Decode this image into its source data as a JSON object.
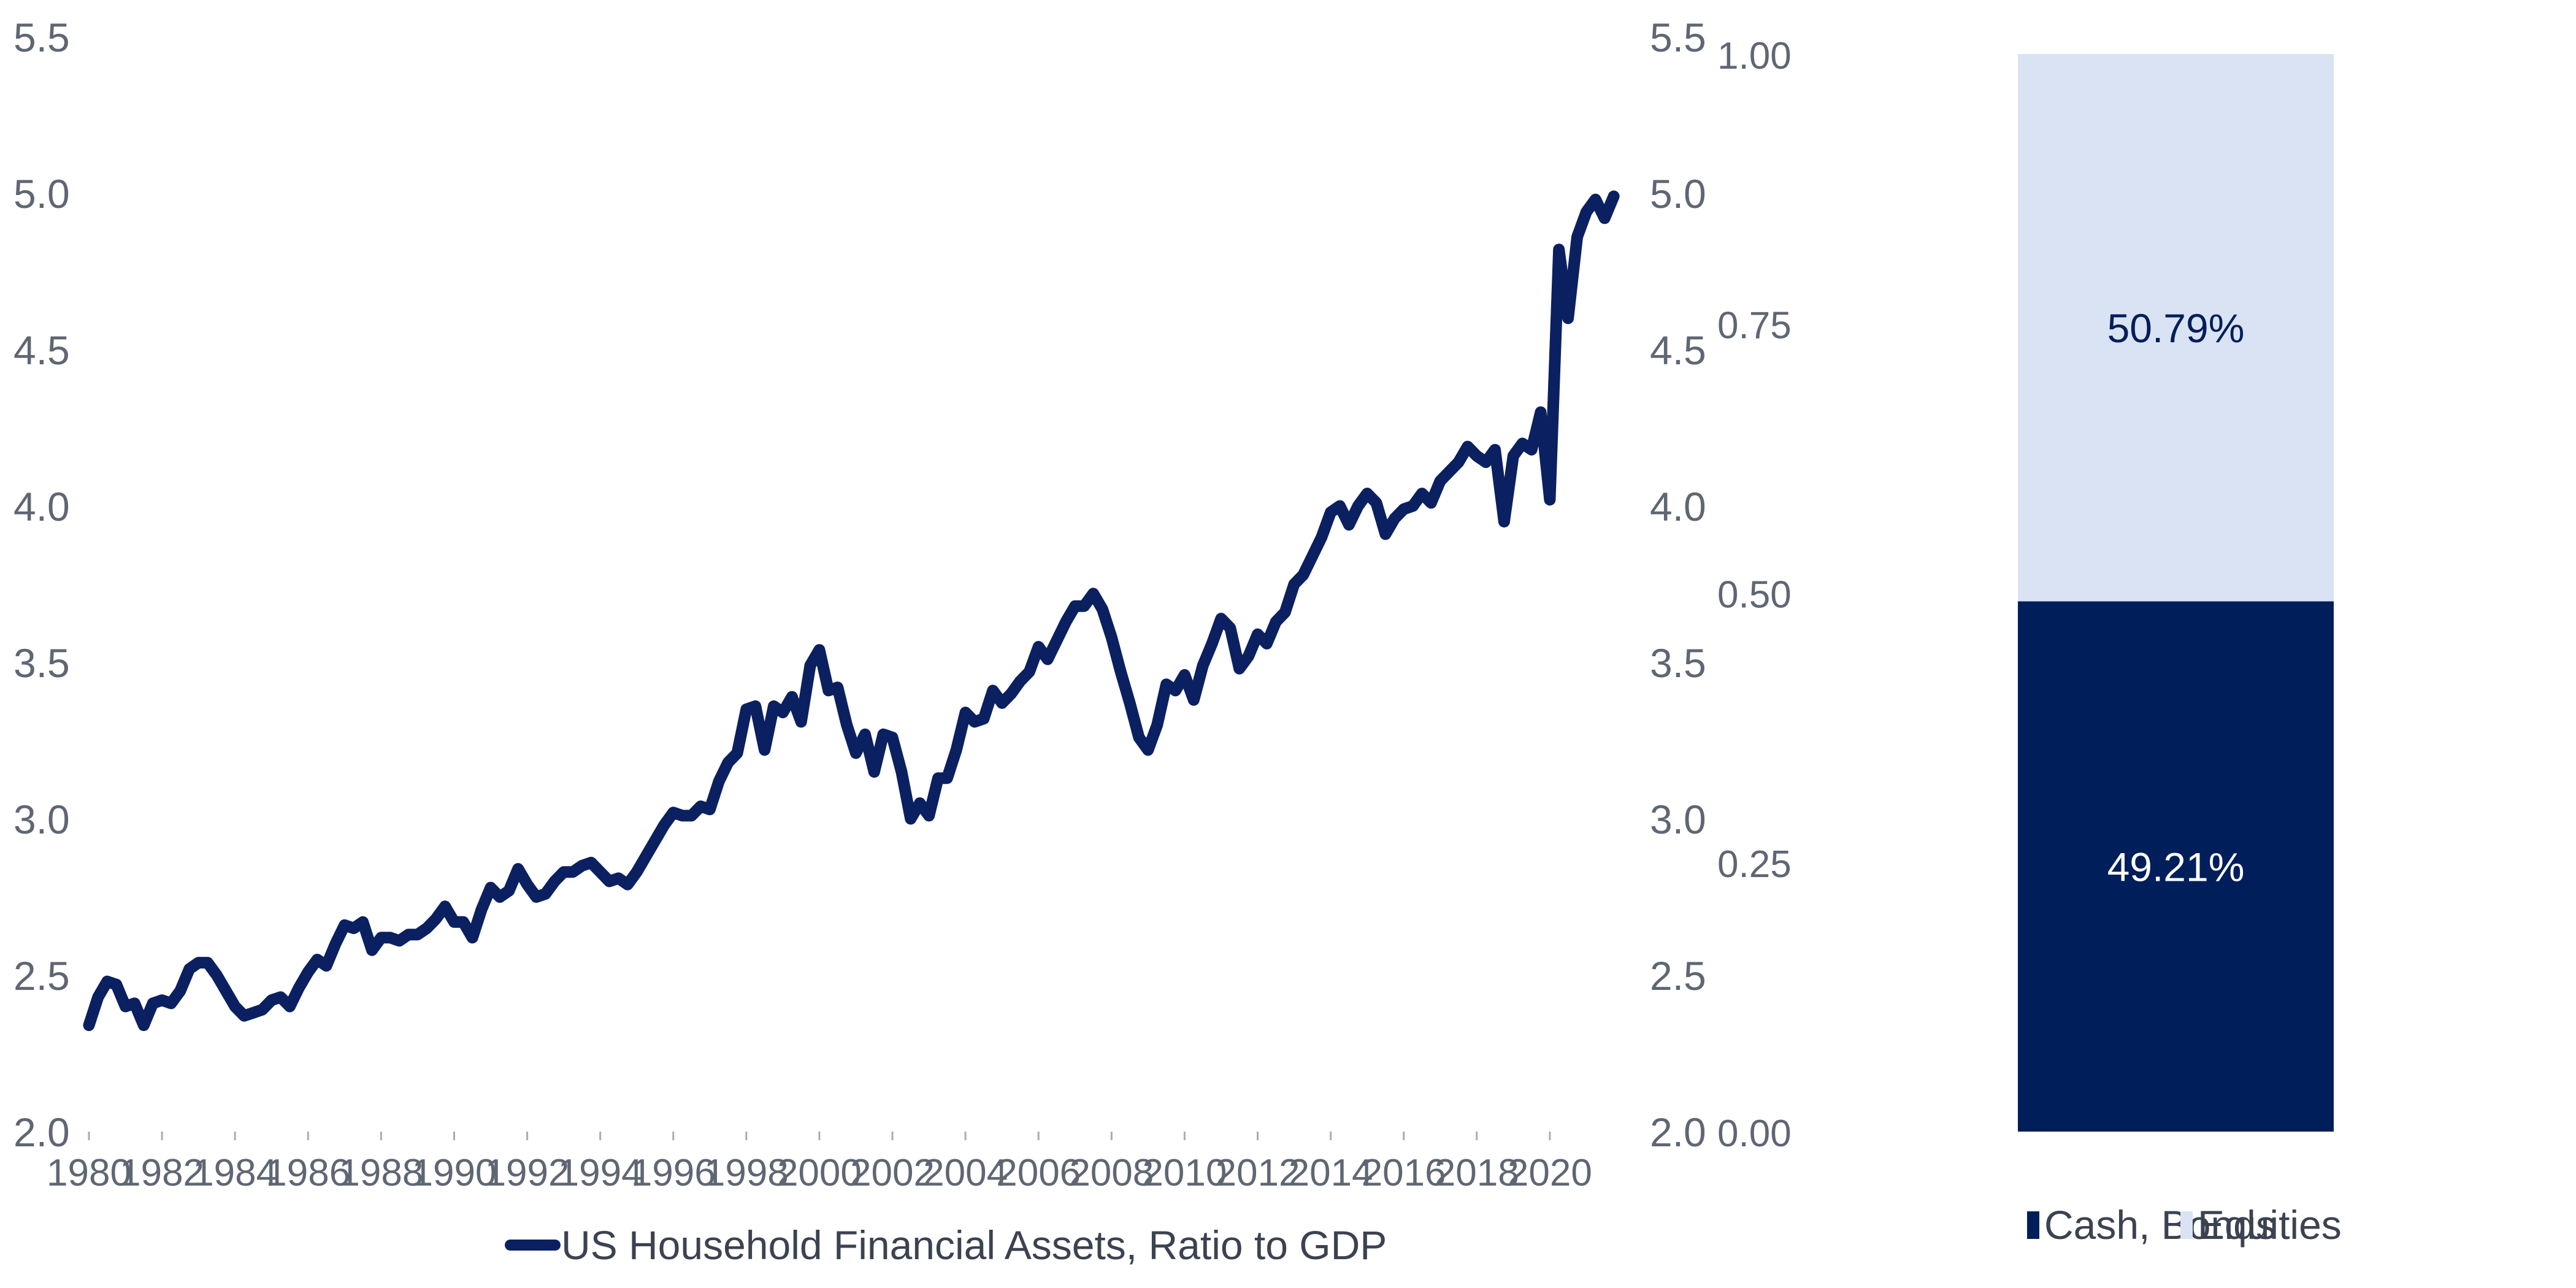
{
  "colors": {
    "line": "#0b2060",
    "cash_bonds": "#001e5a",
    "equities": "#dae3f3",
    "tick_text": "#5f6673"
  },
  "chart_data": [
    {
      "type": "line",
      "title": "",
      "xlabel": "",
      "ylabel": "",
      "x_ticks": [
        "1980",
        "1982",
        "1984",
        "1986",
        "1988",
        "1990",
        "1992",
        "1994",
        "1996",
        "1998",
        "2000",
        "2002",
        "2004",
        "2006",
        "2008",
        "2010",
        "2012",
        "2014",
        "2016",
        "2018",
        "2020"
      ],
      "y_ticks": [
        "2.0",
        "2.5",
        "3.0",
        "3.5",
        "4.0",
        "4.5",
        "5.0",
        "5.5"
      ],
      "y_ticks_right": [
        "2.0",
        "2.5",
        "3.0",
        "3.5",
        "4.0",
        "4.5",
        "5.0",
        "5.5"
      ],
      "xlim": [
        1980,
        2021.9
      ],
      "ylim": [
        2.0,
        5.5
      ],
      "grid": false,
      "legend_position": "bottom-center",
      "series": [
        {
          "name": "US Household Financial Assets, Ratio to GDP",
          "x": [
            1980.0,
            1980.25,
            1980.5,
            1980.75,
            1981.0,
            1981.25,
            1981.5,
            1981.75,
            1982.0,
            1982.25,
            1982.5,
            1982.75,
            1983.0,
            1983.25,
            1983.5,
            1983.75,
            1984.0,
            1984.25,
            1984.5,
            1984.75,
            1985.0,
            1985.25,
            1985.5,
            1985.75,
            1986.0,
            1986.25,
            1986.5,
            1986.75,
            1987.0,
            1987.25,
            1987.5,
            1987.75,
            1988.0,
            1988.25,
            1988.5,
            1988.75,
            1989.0,
            1989.25,
            1989.5,
            1989.75,
            1990.0,
            1990.25,
            1990.5,
            1990.75,
            1991.0,
            1991.25,
            1991.5,
            1991.75,
            1992.0,
            1992.25,
            1992.5,
            1992.75,
            1993.0,
            1993.25,
            1993.5,
            1993.75,
            1994.0,
            1994.25,
            1994.5,
            1994.75,
            1995.0,
            1995.25,
            1995.5,
            1995.75,
            1996.0,
            1996.25,
            1996.5,
            1996.75,
            1997.0,
            1997.25,
            1997.5,
            1997.75,
            1998.0,
            1998.25,
            1998.5,
            1998.75,
            1999.0,
            1999.25,
            1999.5,
            1999.75,
            2000.0,
            2000.25,
            2000.5,
            2000.75,
            2001.0,
            2001.25,
            2001.5,
            2001.75,
            2002.0,
            2002.25,
            2002.5,
            2002.75,
            2003.0,
            2003.25,
            2003.5,
            2003.75,
            2004.0,
            2004.25,
            2004.5,
            2004.75,
            2005.0,
            2005.25,
            2005.5,
            2005.75,
            2006.0,
            2006.25,
            2006.5,
            2006.75,
            2007.0,
            2007.25,
            2007.5,
            2007.75,
            2008.0,
            2008.25,
            2008.5,
            2008.75,
            2009.0,
            2009.25,
            2009.5,
            2009.75,
            2010.0,
            2010.25,
            2010.5,
            2010.75,
            2011.0,
            2011.25,
            2011.5,
            2011.75,
            2012.0,
            2012.25,
            2012.5,
            2012.75,
            2013.0,
            2013.25,
            2013.5,
            2013.75,
            2014.0,
            2014.25,
            2014.5,
            2014.75,
            2015.0,
            2015.25,
            2015.5,
            2015.75,
            2016.0,
            2016.25,
            2016.5,
            2016.75,
            2017.0,
            2017.25,
            2017.5,
            2017.75,
            2018.0,
            2018.25,
            2018.5,
            2018.75,
            2019.0,
            2019.25,
            2019.5,
            2019.75,
            2020.0,
            2020.25,
            2020.5,
            2020.75,
            2021.0,
            2021.25,
            2021.5,
            2021.75
          ],
          "values": [
            2.34,
            2.43,
            2.48,
            2.47,
            2.4,
            2.41,
            2.34,
            2.41,
            2.42,
            2.41,
            2.45,
            2.52,
            2.54,
            2.54,
            2.5,
            2.45,
            2.4,
            2.37,
            2.38,
            2.39,
            2.42,
            2.43,
            2.4,
            2.46,
            2.51,
            2.55,
            2.53,
            2.6,
            2.66,
            2.65,
            2.67,
            2.58,
            2.62,
            2.62,
            2.61,
            2.63,
            2.63,
            2.65,
            2.68,
            2.72,
            2.67,
            2.67,
            2.62,
            2.71,
            2.78,
            2.75,
            2.77,
            2.84,
            2.79,
            2.75,
            2.76,
            2.8,
            2.83,
            2.83,
            2.85,
            2.86,
            2.83,
            2.8,
            2.81,
            2.79,
            2.83,
            2.88,
            2.93,
            2.98,
            3.02,
            3.01,
            3.01,
            3.04,
            3.03,
            3.12,
            3.18,
            3.21,
            3.35,
            3.36,
            3.22,
            3.36,
            3.34,
            3.39,
            3.31,
            3.49,
            3.54,
            3.41,
            3.42,
            3.3,
            3.21,
            3.27,
            3.15,
            3.27,
            3.26,
            3.15,
            3.0,
            3.05,
            3.01,
            3.13,
            3.13,
            3.22,
            3.34,
            3.31,
            3.32,
            3.41,
            3.37,
            3.4,
            3.44,
            3.47,
            3.55,
            3.51,
            3.57,
            3.63,
            3.68,
            3.68,
            3.72,
            3.67,
            3.58,
            3.47,
            3.37,
            3.26,
            3.22,
            3.3,
            3.43,
            3.41,
            3.46,
            3.38,
            3.49,
            3.56,
            3.64,
            3.61,
            3.48,
            3.52,
            3.59,
            3.56,
            3.63,
            3.66,
            3.75,
            3.78,
            3.84,
            3.9,
            3.98,
            4.0,
            3.94,
            4.0,
            4.04,
            4.01,
            3.91,
            3.96,
            3.99,
            4.0,
            4.04,
            4.01,
            4.08,
            4.11,
            4.14,
            4.19,
            4.16,
            4.14,
            4.18,
            3.95,
            4.16,
            4.2,
            4.18,
            4.3,
            4.02,
            4.82,
            4.6,
            4.86,
            4.94,
            4.98,
            4.92,
            4.99
          ]
        }
      ]
    },
    {
      "type": "bar",
      "stacked": true,
      "title": "",
      "xlabel": "",
      "ylabel": "",
      "y_ticks": [
        "0.00",
        "0.25",
        "0.50",
        "0.75",
        "1.00"
      ],
      "ylim": [
        0,
        1
      ],
      "grid": false,
      "legend_position": "bottom",
      "categories": [
        ""
      ],
      "series": [
        {
          "name": "Cash, Bonds",
          "values": [
            0.4921
          ],
          "label": "49.21%"
        },
        {
          "name": "Equities",
          "values": [
            0.5079
          ],
          "label": "50.79%"
        }
      ]
    }
  ]
}
